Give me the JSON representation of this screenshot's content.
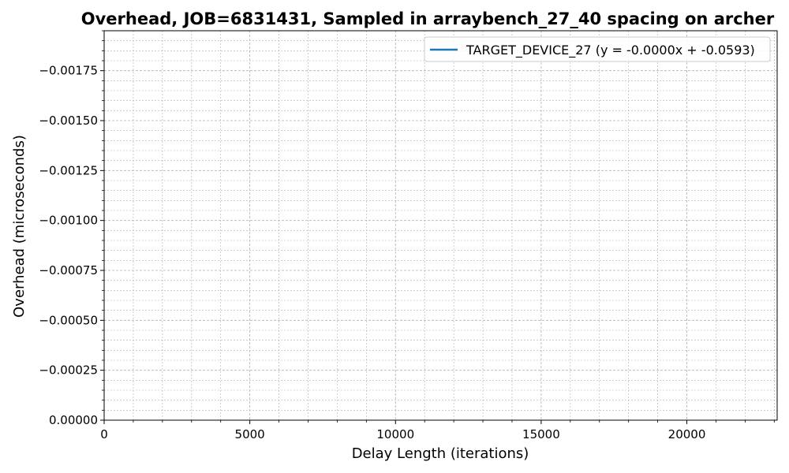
{
  "chart_data": {
    "type": "line",
    "title": "Overhead, JOB=6831431, Sampled in arraybench_27_40 spacing on archer",
    "xlabel": "Delay Length (iterations)",
    "ylabel": "Overhead (microseconds)",
    "xlim": [
      0,
      23100
    ],
    "ylim": [
      0,
      -0.00195
    ],
    "x_ticks": [
      0,
      5000,
      10000,
      15000,
      20000
    ],
    "x_tick_labels": [
      "0",
      "5000",
      "10000",
      "15000",
      "20000"
    ],
    "y_ticks": [
      0,
      -0.00025,
      -0.0005,
      -0.00075,
      -0.001,
      -0.00125,
      -0.0015,
      -0.00175
    ],
    "y_tick_labels": [
      "0.00000",
      "−0.00025",
      "−0.00050",
      "−0.00075",
      "−0.00100",
      "−0.00125",
      "−0.00150",
      "−0.00175"
    ],
    "grid": true,
    "legend_position": "top-right",
    "series": [
      {
        "name": "TARGET_DEVICE_27 (y = -0.0000x + -0.0593)",
        "color": "#1f77b4",
        "x": [],
        "y": []
      }
    ]
  }
}
